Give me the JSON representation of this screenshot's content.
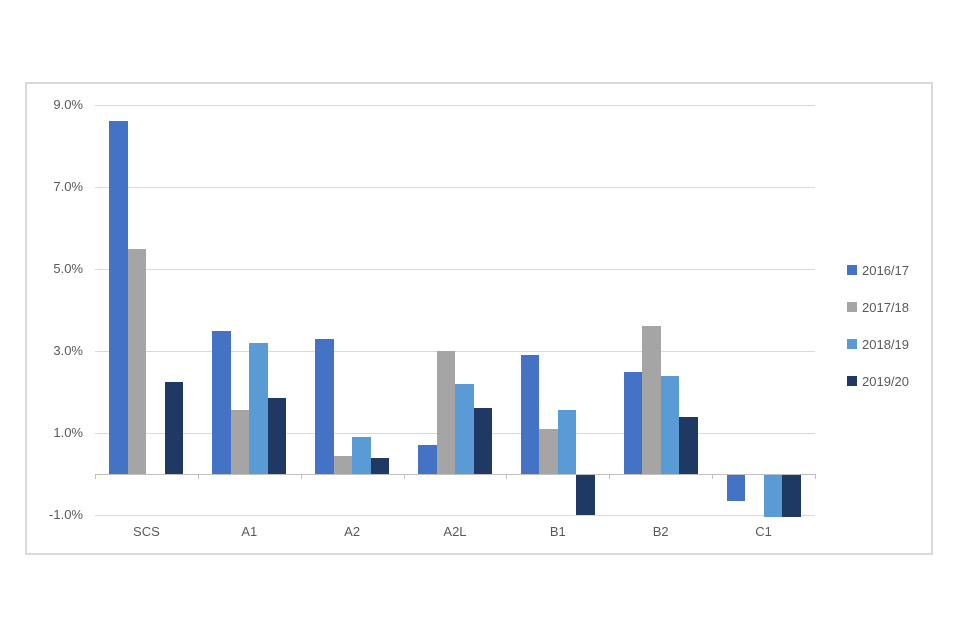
{
  "chart_data": {
    "type": "bar",
    "title": "",
    "xlabel": "",
    "ylabel": "",
    "y_unit": "%",
    "categories": [
      "SCS",
      "A1",
      "A2",
      "A2L",
      "B1",
      "B2",
      "C1"
    ],
    "series": [
      {
        "name": "2016/17",
        "color": "#4472c4",
        "values": [
          8.6,
          3.5,
          3.3,
          0.7,
          2.9,
          2.5,
          -0.65
        ]
      },
      {
        "name": "2017/18",
        "color": "#a5a5a5",
        "values": [
          5.5,
          1.55,
          0.45,
          3.0,
          1.1,
          3.6,
          0
        ]
      },
      {
        "name": "2018/19",
        "color": "#5b9bd5",
        "values": [
          0,
          3.2,
          0.9,
          2.2,
          1.55,
          2.4,
          -1.05
        ]
      },
      {
        "name": "2019/20",
        "color": "#1f3864",
        "values": [
          2.25,
          1.85,
          0.4,
          1.6,
          -1.0,
          1.4,
          -1.05
        ]
      }
    ],
    "y_ticks": [
      {
        "label": "9.0%",
        "value": 9
      },
      {
        "label": "7.0%",
        "value": 7
      },
      {
        "label": "5.0%",
        "value": 5
      },
      {
        "label": "3.0%",
        "value": 3
      },
      {
        "label": "1.0%",
        "value": 1
      },
      {
        "label": "-1.0%",
        "value": -1
      }
    ],
    "ylim": [
      -1,
      9
    ],
    "grid": true,
    "legend_position": "right",
    "colors": {
      "gridline": "#d9d9d9",
      "axis_line": "#bfbfbf",
      "tick_label": "#595959",
      "chart_border": "#d9d9d9",
      "background": "#ffffff"
    }
  }
}
